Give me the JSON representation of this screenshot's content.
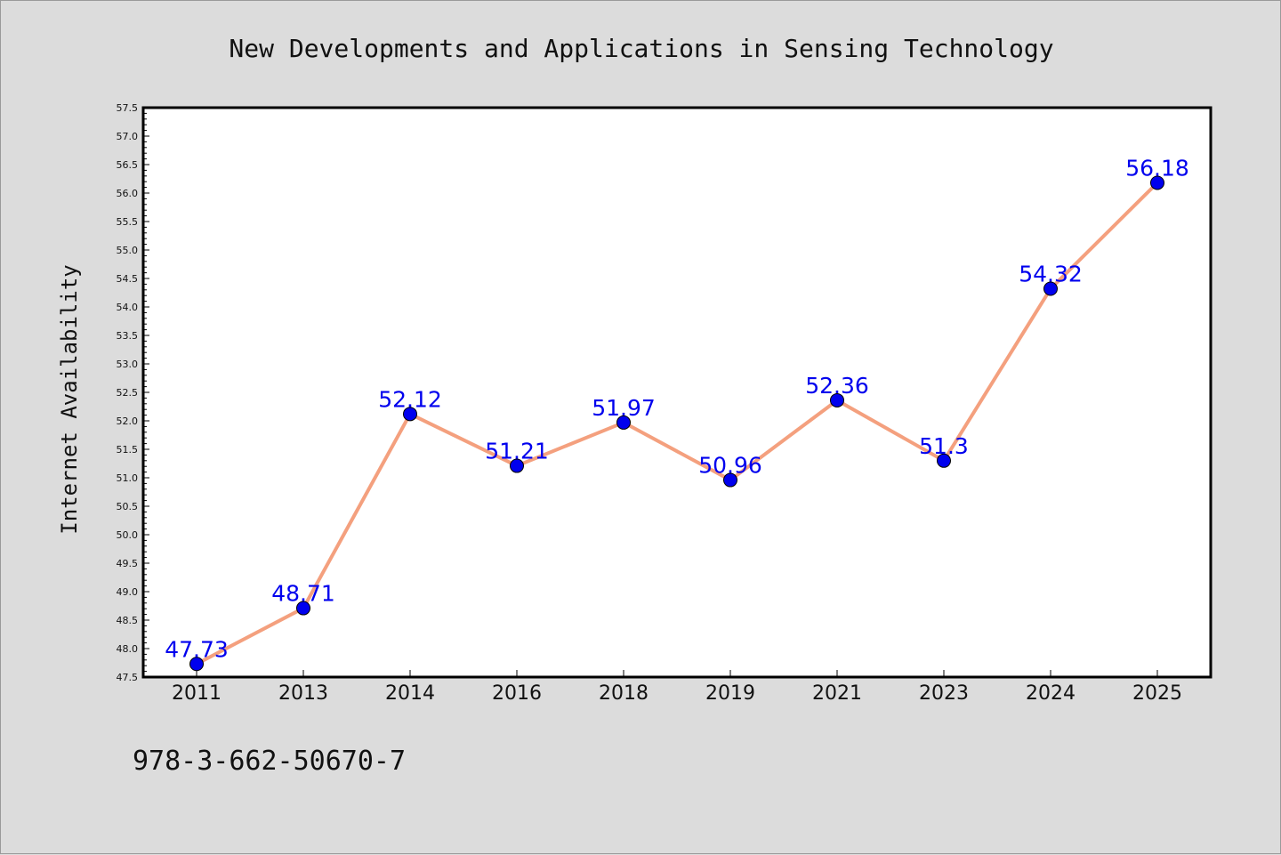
{
  "chart_data": {
    "type": "line",
    "title": "New Developments and Applications in Sensing Technology",
    "xlabel": "",
    "ylabel": "Internet Availability",
    "categories": [
      "2011",
      "2013",
      "2014",
      "2016",
      "2018",
      "2019",
      "2021",
      "2023",
      "2024",
      "2025"
    ],
    "series": [
      {
        "values": [
          47.73,
          48.71,
          52.12,
          51.21,
          51.97,
          50.96,
          52.36,
          51.3,
          54.32,
          56.18
        ],
        "labels": [
          "47.73",
          "48.71",
          "52.12",
          "51.21",
          "51.97",
          "50.96",
          "52.36",
          "51.3",
          "54.32",
          "56.18"
        ],
        "line_color": "#f4a07e",
        "marker_color": "#0000ee"
      }
    ],
    "ylim": [
      47.5,
      57.5
    ],
    "yticks": [
      "47.5",
      "48.0",
      "48.5",
      "49.0",
      "49.5",
      "50.0",
      "50.5",
      "51.0",
      "51.5",
      "52.0",
      "52.5",
      "53.0",
      "53.5",
      "54.0",
      "54.5",
      "55.0",
      "55.5",
      "56.0",
      "56.5",
      "57.0",
      "57.5"
    ],
    "grid": false,
    "legend": "none"
  },
  "footer": {
    "isbn": "978-3-662-50670-7"
  }
}
